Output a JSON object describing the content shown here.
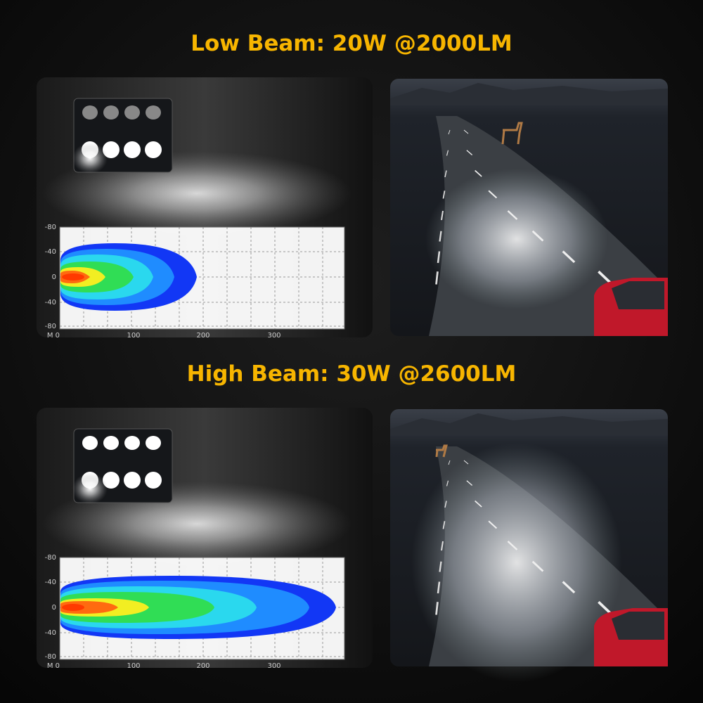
{
  "sections": [
    {
      "title": "Low Beam: 20W @2000LM",
      "chart": {
        "y_labels": [
          "-80",
          "-40",
          "0",
          "-40",
          "-80"
        ],
        "x_labels": [
          "M 0",
          "100",
          "200",
          "300"
        ]
      }
    },
    {
      "title": "High Beam: 30W @2600LM",
      "chart": {
        "y_labels": [
          "-80",
          "-40",
          "0",
          "-40",
          "-80"
        ],
        "x_labels": [
          "M 0",
          "100",
          "200",
          "300"
        ]
      }
    }
  ]
}
